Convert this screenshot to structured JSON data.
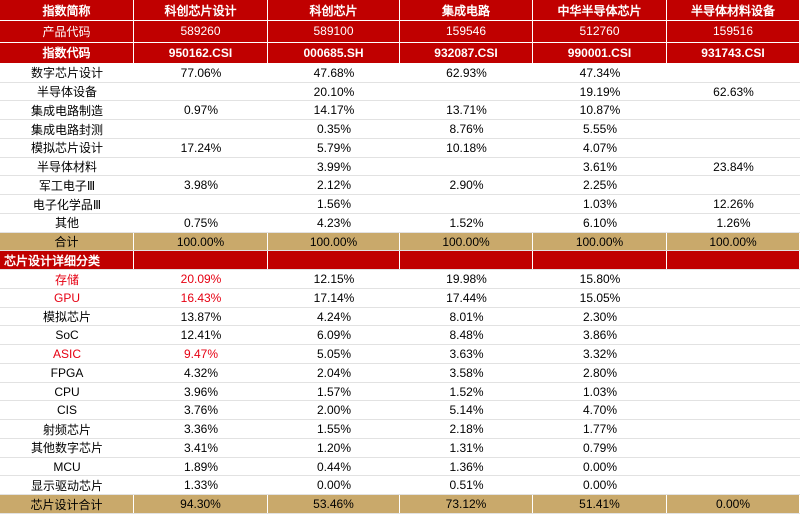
{
  "table": {
    "header": [
      "指数简称",
      "科创芯片设计",
      "科创芯片",
      "集成电路",
      "中华半导体芯片",
      "半导体材料设备"
    ],
    "codes": [
      {
        "label": "产品代码",
        "values": [
          "589260",
          "589100",
          "159546",
          "512760",
          "159516"
        ]
      },
      {
        "label": "指数代码",
        "values": [
          "950162.CSI",
          "000685.SH",
          "932087.CSI",
          "990001.CSI",
          "931743.CSI"
        ]
      }
    ],
    "industries": [
      {
        "label": "数字芯片设计",
        "values": [
          "77.06%",
          "47.68%",
          "62.93%",
          "47.34%",
          null
        ]
      },
      {
        "label": "半导体设备",
        "values": [
          null,
          "20.10%",
          null,
          "19.19%",
          "62.63%"
        ]
      },
      {
        "label": "集成电路制造",
        "values": [
          "0.97%",
          "14.17%",
          "13.71%",
          "10.87%",
          null
        ]
      },
      {
        "label": "集成电路封测",
        "values": [
          null,
          "0.35%",
          "8.76%",
          "5.55%",
          null
        ]
      },
      {
        "label": "模拟芯片设计",
        "values": [
          "17.24%",
          "5.79%",
          "10.18%",
          "4.07%",
          null
        ]
      },
      {
        "label": "半导体材料",
        "values": [
          null,
          "3.99%",
          null,
          "3.61%",
          "23.84%"
        ]
      },
      {
        "label": "军工电子Ⅲ",
        "values": [
          "3.98%",
          "2.12%",
          "2.90%",
          "2.25%",
          null
        ]
      },
      {
        "label": "电子化学品Ⅲ",
        "values": [
          null,
          "1.56%",
          null,
          "1.03%",
          "12.26%"
        ]
      },
      {
        "label": "其他",
        "values": [
          "0.75%",
          "4.23%",
          "1.52%",
          "6.10%",
          "1.26%"
        ]
      }
    ],
    "industry_total": {
      "label": "合计",
      "values": [
        "100.00%",
        "100.00%",
        "100.00%",
        "100.00%",
        "100.00%"
      ]
    },
    "detail_title": "芯片设计详细分类",
    "details": [
      {
        "label": "存储",
        "values": [
          "20.09%",
          "12.15%",
          "19.98%",
          "15.80%",
          null
        ],
        "highlight_color": "#e60012"
      },
      {
        "label": "GPU",
        "values": [
          "16.43%",
          "17.14%",
          "17.44%",
          "15.05%",
          null
        ],
        "highlight_color": "#e60012"
      },
      {
        "label": "模拟芯片",
        "values": [
          "13.87%",
          "4.24%",
          "8.01%",
          "2.30%",
          null
        ]
      },
      {
        "label": "SoC",
        "values": [
          "12.41%",
          "6.09%",
          "8.48%",
          "3.86%",
          null
        ]
      },
      {
        "label": "ASIC",
        "values": [
          "9.47%",
          "5.05%",
          "3.63%",
          "3.32%",
          null
        ],
        "highlight_color": "#e60012"
      },
      {
        "label": "FPGA",
        "values": [
          "4.32%",
          "2.04%",
          "3.58%",
          "2.80%",
          null
        ]
      },
      {
        "label": "CPU",
        "values": [
          "3.96%",
          "1.57%",
          "1.52%",
          "1.03%",
          null
        ]
      },
      {
        "label": "CIS",
        "values": [
          "3.76%",
          "2.00%",
          "5.14%",
          "4.70%",
          null
        ]
      },
      {
        "label": "射频芯片",
        "values": [
          "3.36%",
          "1.55%",
          "2.18%",
          "1.77%",
          null
        ]
      },
      {
        "label": "其他数字芯片",
        "values": [
          "3.41%",
          "1.20%",
          "1.31%",
          "0.79%",
          null
        ]
      },
      {
        "label": "MCU",
        "values": [
          "1.89%",
          "0.44%",
          "1.36%",
          "0.00%",
          null
        ]
      },
      {
        "label": "显示驱动芯片",
        "values": [
          "1.33%",
          "0.00%",
          "0.51%",
          "0.00%",
          null
        ]
      }
    ],
    "detail_total": {
      "label": "芯片设计合计",
      "values": [
        "94.30%",
        "53.46%",
        "73.12%",
        "51.41%",
        "0.00%"
      ]
    }
  }
}
